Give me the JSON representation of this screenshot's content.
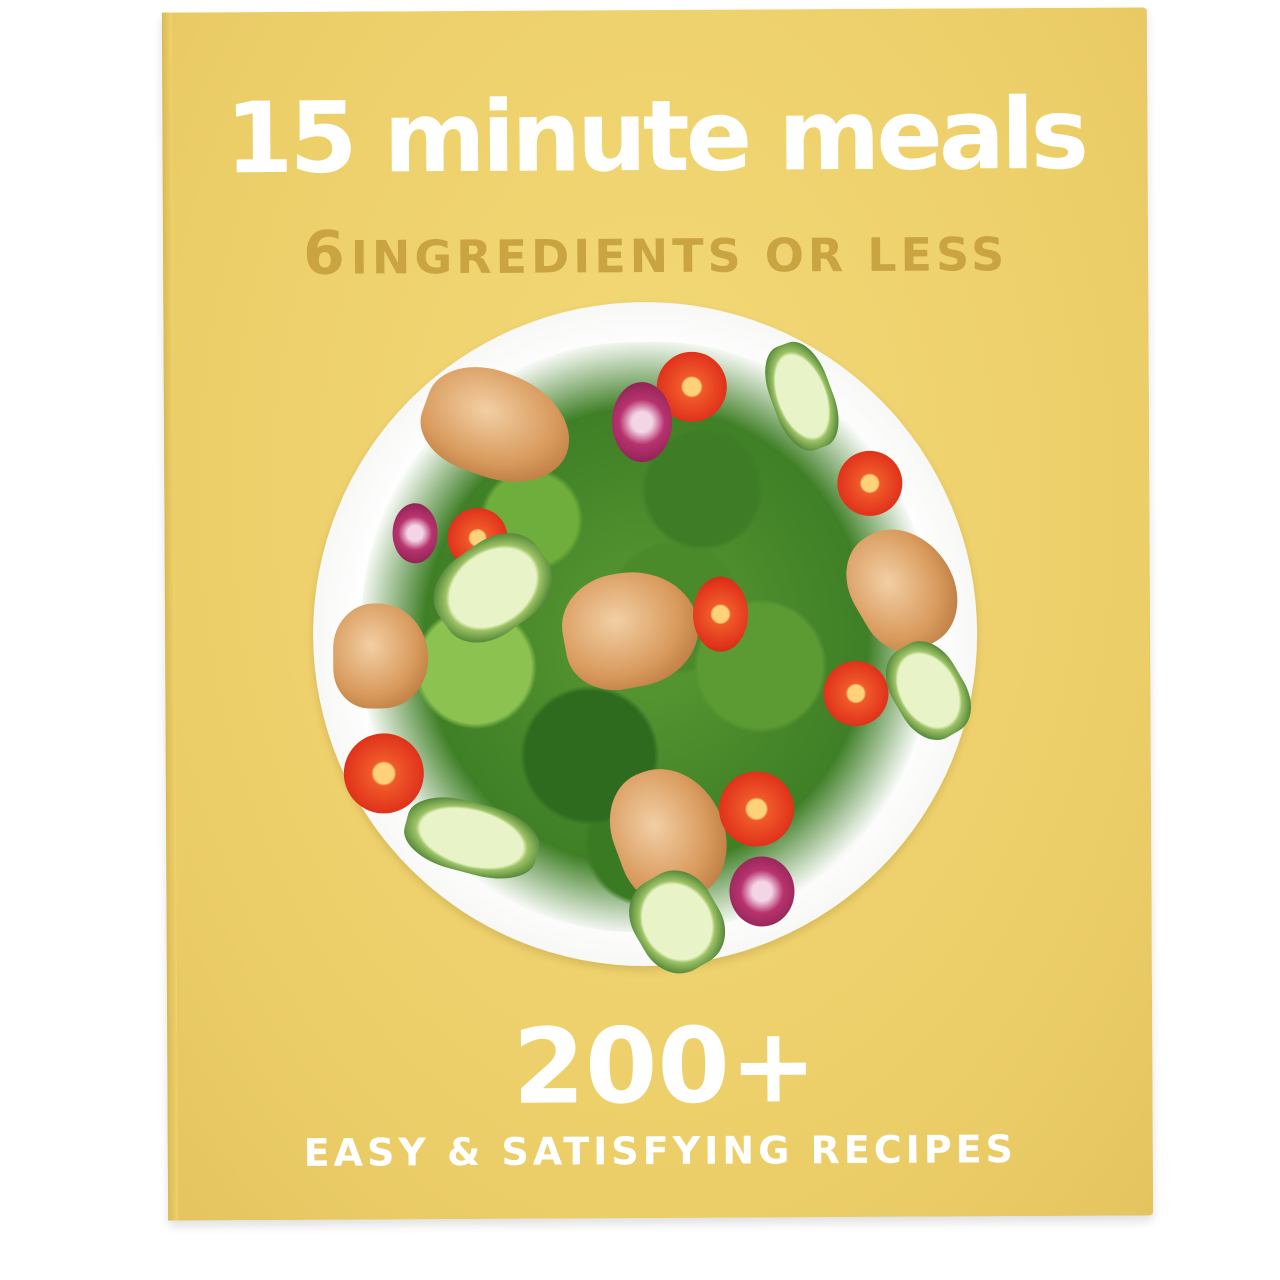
{
  "cover": {
    "title": "15 minute meals",
    "subtitle_number": "6",
    "subtitle_text": "INGREDIENTS OR LESS",
    "count": "200+",
    "tagline": "EASY & SATISFYING RECIPES"
  },
  "colors": {
    "cover_yellow": "#f0d36e",
    "subtitle_gold": "#c9a441",
    "title_white": "#ffffff"
  },
  "image": {
    "subject": "salad plate with grilled chicken, cherry tomatoes, cucumber, arugula and radicchio"
  }
}
